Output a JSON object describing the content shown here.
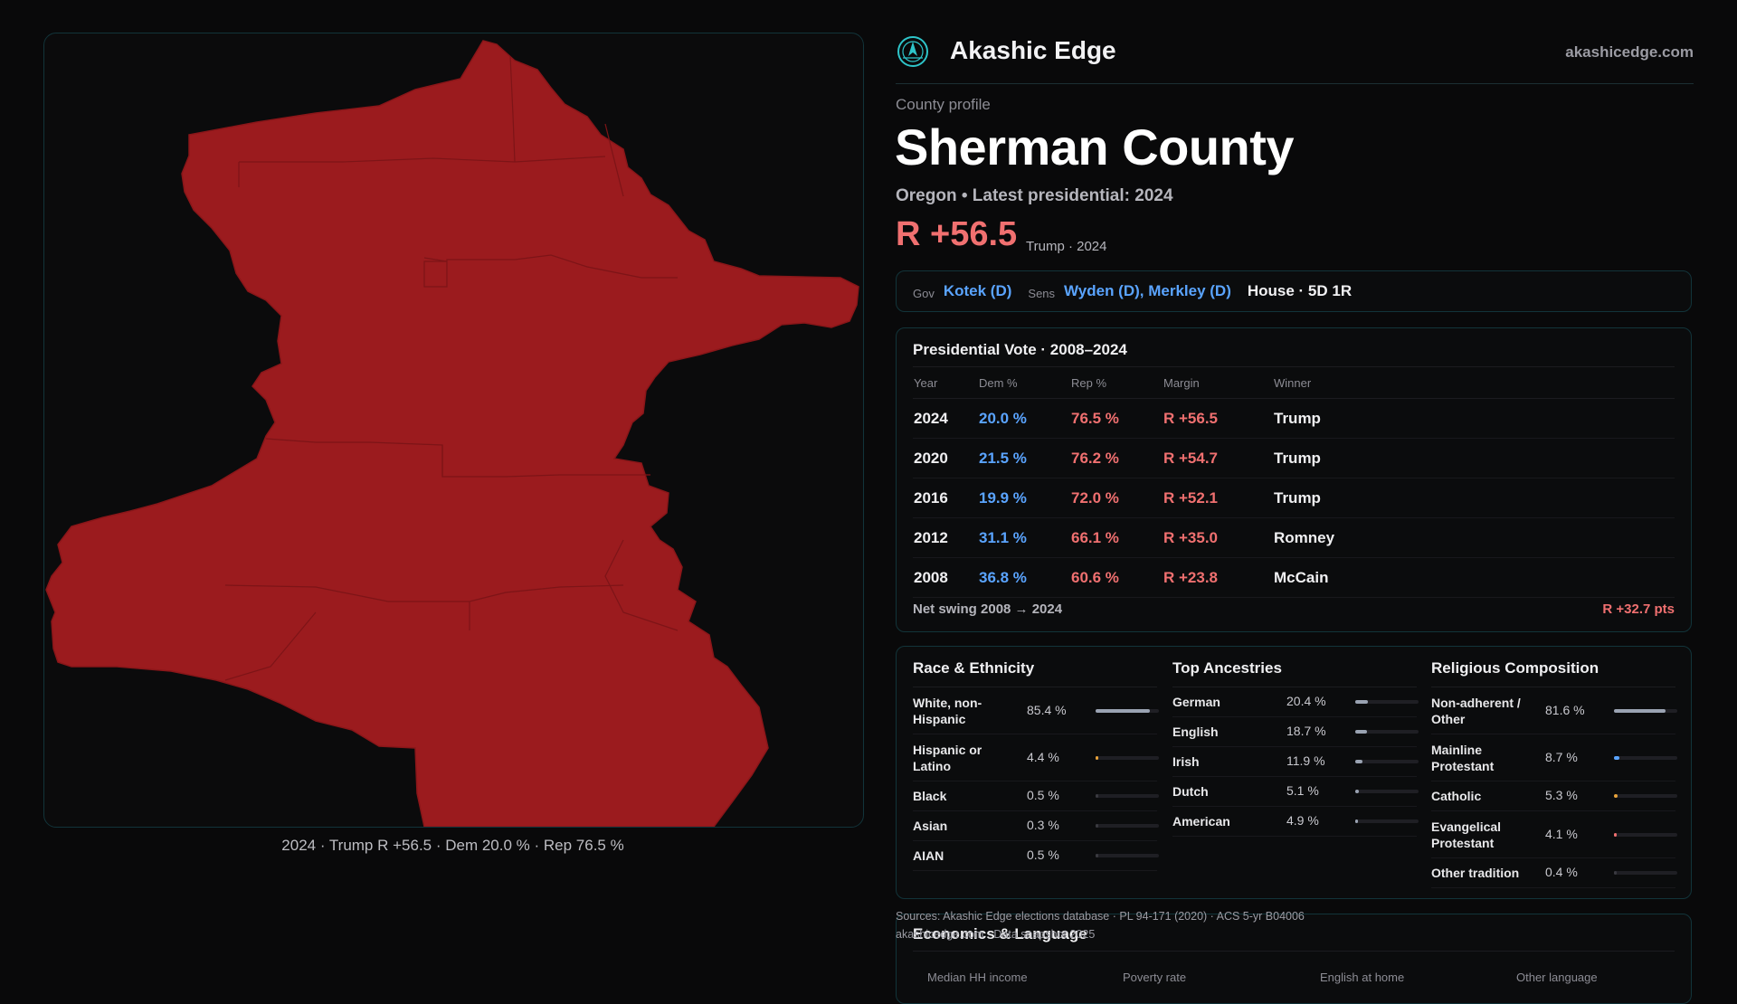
{
  "map": {
    "caption": "2024 · Trump R +56.5 · Dem 20.0 % · Rep 76.5 %",
    "fill_color": "#9b1b1e"
  },
  "header": {
    "brand": "Akashic Edge",
    "site": "akashicedge.com",
    "logo_icon": "compass-logo-icon"
  },
  "profile": {
    "kicker": "County profile",
    "title": "Sherman County",
    "subtitle": "Oregon • Latest presidential: 2024",
    "margin": "R +56.5",
    "margin_note": "Trump · 2024"
  },
  "officials": {
    "gov_label": "Gov",
    "gov_value": "Kotek (D)",
    "sens_label": "Sens",
    "sens_value": "Wyden (D), Merkley (D)",
    "house": "House · 5D 1R"
  },
  "presidential": {
    "title": "Presidential Vote · 2008–2024",
    "headers": [
      "Year",
      "Dem %",
      "Rep %",
      "Margin",
      "Winner"
    ],
    "rows": [
      {
        "year": "2024",
        "dem": "20.0 %",
        "rep": "76.5 %",
        "margin": "R +56.5",
        "winner": "Trump"
      },
      {
        "year": "2020",
        "dem": "21.5 %",
        "rep": "76.2 %",
        "margin": "R +54.7",
        "winner": "Trump"
      },
      {
        "year": "2016",
        "dem": "19.9 %",
        "rep": "72.0 %",
        "margin": "R +52.1",
        "winner": "Trump"
      },
      {
        "year": "2012",
        "dem": "31.1 %",
        "rep": "66.1 %",
        "margin": "R +35.0",
        "winner": "Romney"
      },
      {
        "year": "2008",
        "dem": "36.8 %",
        "rep": "60.6 %",
        "margin": "R +23.8",
        "winner": "McCain"
      }
    ],
    "swing_label": "Net swing 2008 → 2024",
    "swing_value": "R +32.7 pts"
  },
  "race": {
    "title": "Race & Ethnicity",
    "rows": [
      {
        "label": "White, non-Hispanic",
        "pct": "85.4 %",
        "value": 85.4,
        "color": "#9aa3b2"
      },
      {
        "label": "Hispanic or Latino",
        "pct": "4.4 %",
        "value": 4.4,
        "color": "#e8a33a"
      },
      {
        "label": "Black",
        "pct": "0.5 %",
        "value": 0.5,
        "color": "#3a3a40"
      },
      {
        "label": "Asian",
        "pct": "0.3 %",
        "value": 0.3,
        "color": "#3a3a40"
      },
      {
        "label": "AIAN",
        "pct": "0.5 %",
        "value": 0.5,
        "color": "#3a3a40"
      }
    ]
  },
  "ancestry": {
    "title": "Top Ancestries",
    "rows": [
      {
        "label": "German",
        "pct": "20.4 %",
        "value": 20.4,
        "color": "#9aa3b2"
      },
      {
        "label": "English",
        "pct": "18.7 %",
        "value": 18.7,
        "color": "#9aa3b2"
      },
      {
        "label": "Irish",
        "pct": "11.9 %",
        "value": 11.9,
        "color": "#9aa3b2"
      },
      {
        "label": "Dutch",
        "pct": "5.1 %",
        "value": 5.1,
        "color": "#9aa3b2"
      },
      {
        "label": "American",
        "pct": "4.9 %",
        "value": 4.9,
        "color": "#9aa3b2"
      }
    ]
  },
  "religion": {
    "title": "Religious Composition",
    "rows": [
      {
        "label": "Non-adherent / Other",
        "pct": "81.6 %",
        "value": 81.6,
        "color": "#9aa3b2"
      },
      {
        "label": "Mainline Protestant",
        "pct": "8.7 %",
        "value": 8.7,
        "color": "#5aa4ff"
      },
      {
        "label": "Catholic",
        "pct": "5.3 %",
        "value": 5.3,
        "color": "#e8a33a"
      },
      {
        "label": "Evangelical Protestant",
        "pct": "4.1 %",
        "value": 4.1,
        "color": "#f07070"
      },
      {
        "label": "Other tradition",
        "pct": "0.4 %",
        "value": 0.4,
        "color": "#3a3a40"
      }
    ]
  },
  "footer": {
    "sources": "Sources: Akashic Edge elections database · PL 94-171 (2020) · ACS 5-yr B04006",
    "site_line": "akashicedge.com · Data snapshot 2025"
  },
  "economics": {
    "title": "Economics & Language",
    "headers": [
      "Median HH income",
      "Poverty rate",
      "English at home",
      "Other language"
    ]
  }
}
